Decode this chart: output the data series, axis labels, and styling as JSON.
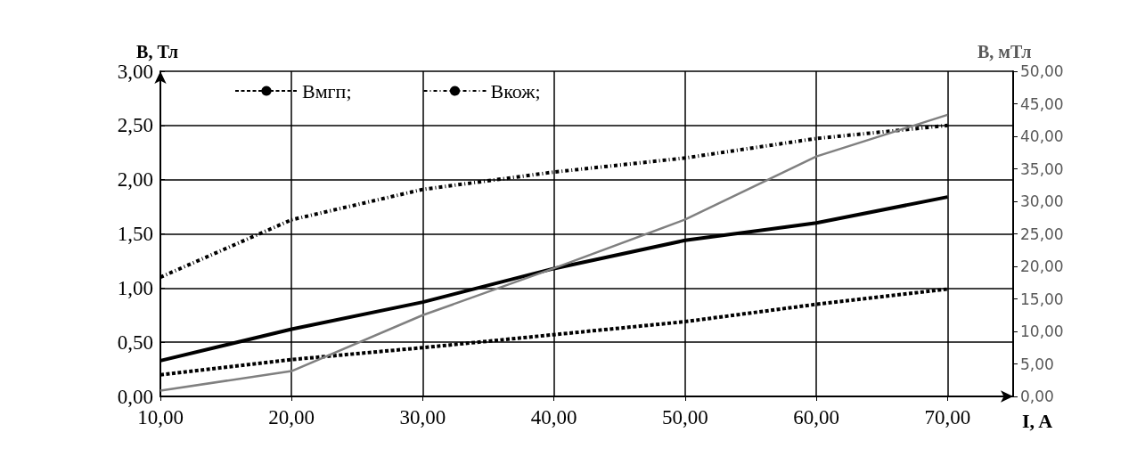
{
  "chart_data": {
    "type": "line",
    "xlabel": "I, A",
    "ylabel": "B, Тл",
    "y2label": "B, мТл",
    "x": [
      10,
      20,
      30,
      40,
      50,
      60,
      70
    ],
    "xlim": [
      10,
      75
    ],
    "xticks": [
      {
        "value": 10,
        "label": "10,00"
      },
      {
        "value": 20,
        "label": "20,00"
      },
      {
        "value": 30,
        "label": "30,00"
      },
      {
        "value": 40,
        "label": "40,00"
      },
      {
        "value": 50,
        "label": "50,00"
      },
      {
        "value": 60,
        "label": "60,00"
      },
      {
        "value": 70,
        "label": "70,00"
      }
    ],
    "ylim": [
      0,
      3
    ],
    "yticks": [
      {
        "value": 0,
        "label": "0,00"
      },
      {
        "value": 0.5,
        "label": "0,50"
      },
      {
        "value": 1,
        "label": "1,00"
      },
      {
        "value": 1.5,
        "label": "1,50"
      },
      {
        "value": 2,
        "label": "2,00"
      },
      {
        "value": 2.5,
        "label": "2,50"
      },
      {
        "value": 3,
        "label": "3,00"
      }
    ],
    "y2lim": [
      0,
      50
    ],
    "y2ticks": [
      {
        "value": 0,
        "label": "0,00"
      },
      {
        "value": 5,
        "label": "5,00"
      },
      {
        "value": 10,
        "label": "10,00"
      },
      {
        "value": 15,
        "label": "15,00"
      },
      {
        "value": 20,
        "label": "20,00"
      },
      {
        "value": 25,
        "label": "25,00"
      },
      {
        "value": 30,
        "label": "30,00"
      },
      {
        "value": 35,
        "label": "35,00"
      },
      {
        "value": 40,
        "label": "40,00"
      },
      {
        "value": 45,
        "label": "45,00"
      },
      {
        "value": 50,
        "label": "50,00"
      }
    ],
    "grid": true,
    "legend": "top left",
    "marker": "none",
    "series": [
      {
        "name": "Bмгп;",
        "color": "#000000",
        "line_style": "dashed",
        "values": [
          0.2,
          0.34,
          0.45,
          0.57,
          0.69,
          0.85,
          0.99
        ]
      },
      {
        "name": "Bкож;",
        "color": "#000000",
        "line_style": "dashdot",
        "values": [
          1.1,
          1.63,
          1.91,
          2.07,
          2.2,
          2.38,
          2.5
        ]
      },
      {
        "color": "#000000",
        "line_style": "solid",
        "values": [
          0.33,
          0.62,
          0.87,
          1.18,
          1.44,
          1.6,
          1.84
        ]
      },
      {
        "color": "#808080",
        "line_style": "solid",
        "axis": "y2",
        "values": [
          0.9,
          3.9,
          12.5,
          19.7,
          27.2,
          36.9,
          43.3
        ]
      }
    ]
  }
}
